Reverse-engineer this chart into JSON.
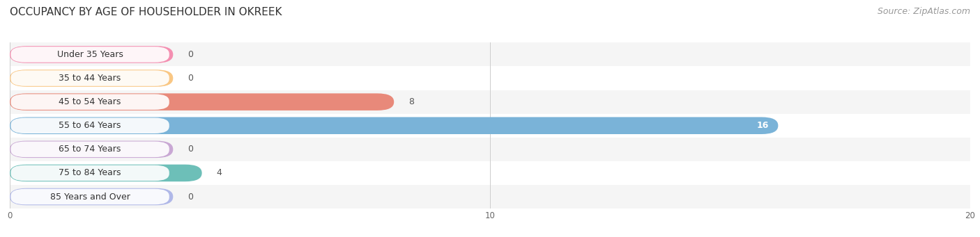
{
  "title": "OCCUPANCY BY AGE OF HOUSEHOLDER IN OKREEK",
  "source": "Source: ZipAtlas.com",
  "categories": [
    "Under 35 Years",
    "35 to 44 Years",
    "45 to 54 Years",
    "55 to 64 Years",
    "65 to 74 Years",
    "75 to 84 Years",
    "85 Years and Over"
  ],
  "values": [
    0,
    0,
    8,
    16,
    0,
    4,
    0
  ],
  "bar_colors": [
    "#f48fb1",
    "#f9c784",
    "#e8897a",
    "#7ab3d8",
    "#c9a8d4",
    "#6dbfb8",
    "#b0b8e8"
  ],
  "row_bg_colors": [
    "#f5f5f5",
    "#ffffff",
    "#f5f5f5",
    "#ffffff",
    "#f5f5f5",
    "#ffffff",
    "#f5f5f5"
  ],
  "xlim": [
    0,
    20
  ],
  "xticks": [
    0,
    10,
    20
  ],
  "background_color": "#ffffff",
  "title_fontsize": 11,
  "label_fontsize": 9,
  "value_fontsize": 9,
  "source_fontsize": 9
}
